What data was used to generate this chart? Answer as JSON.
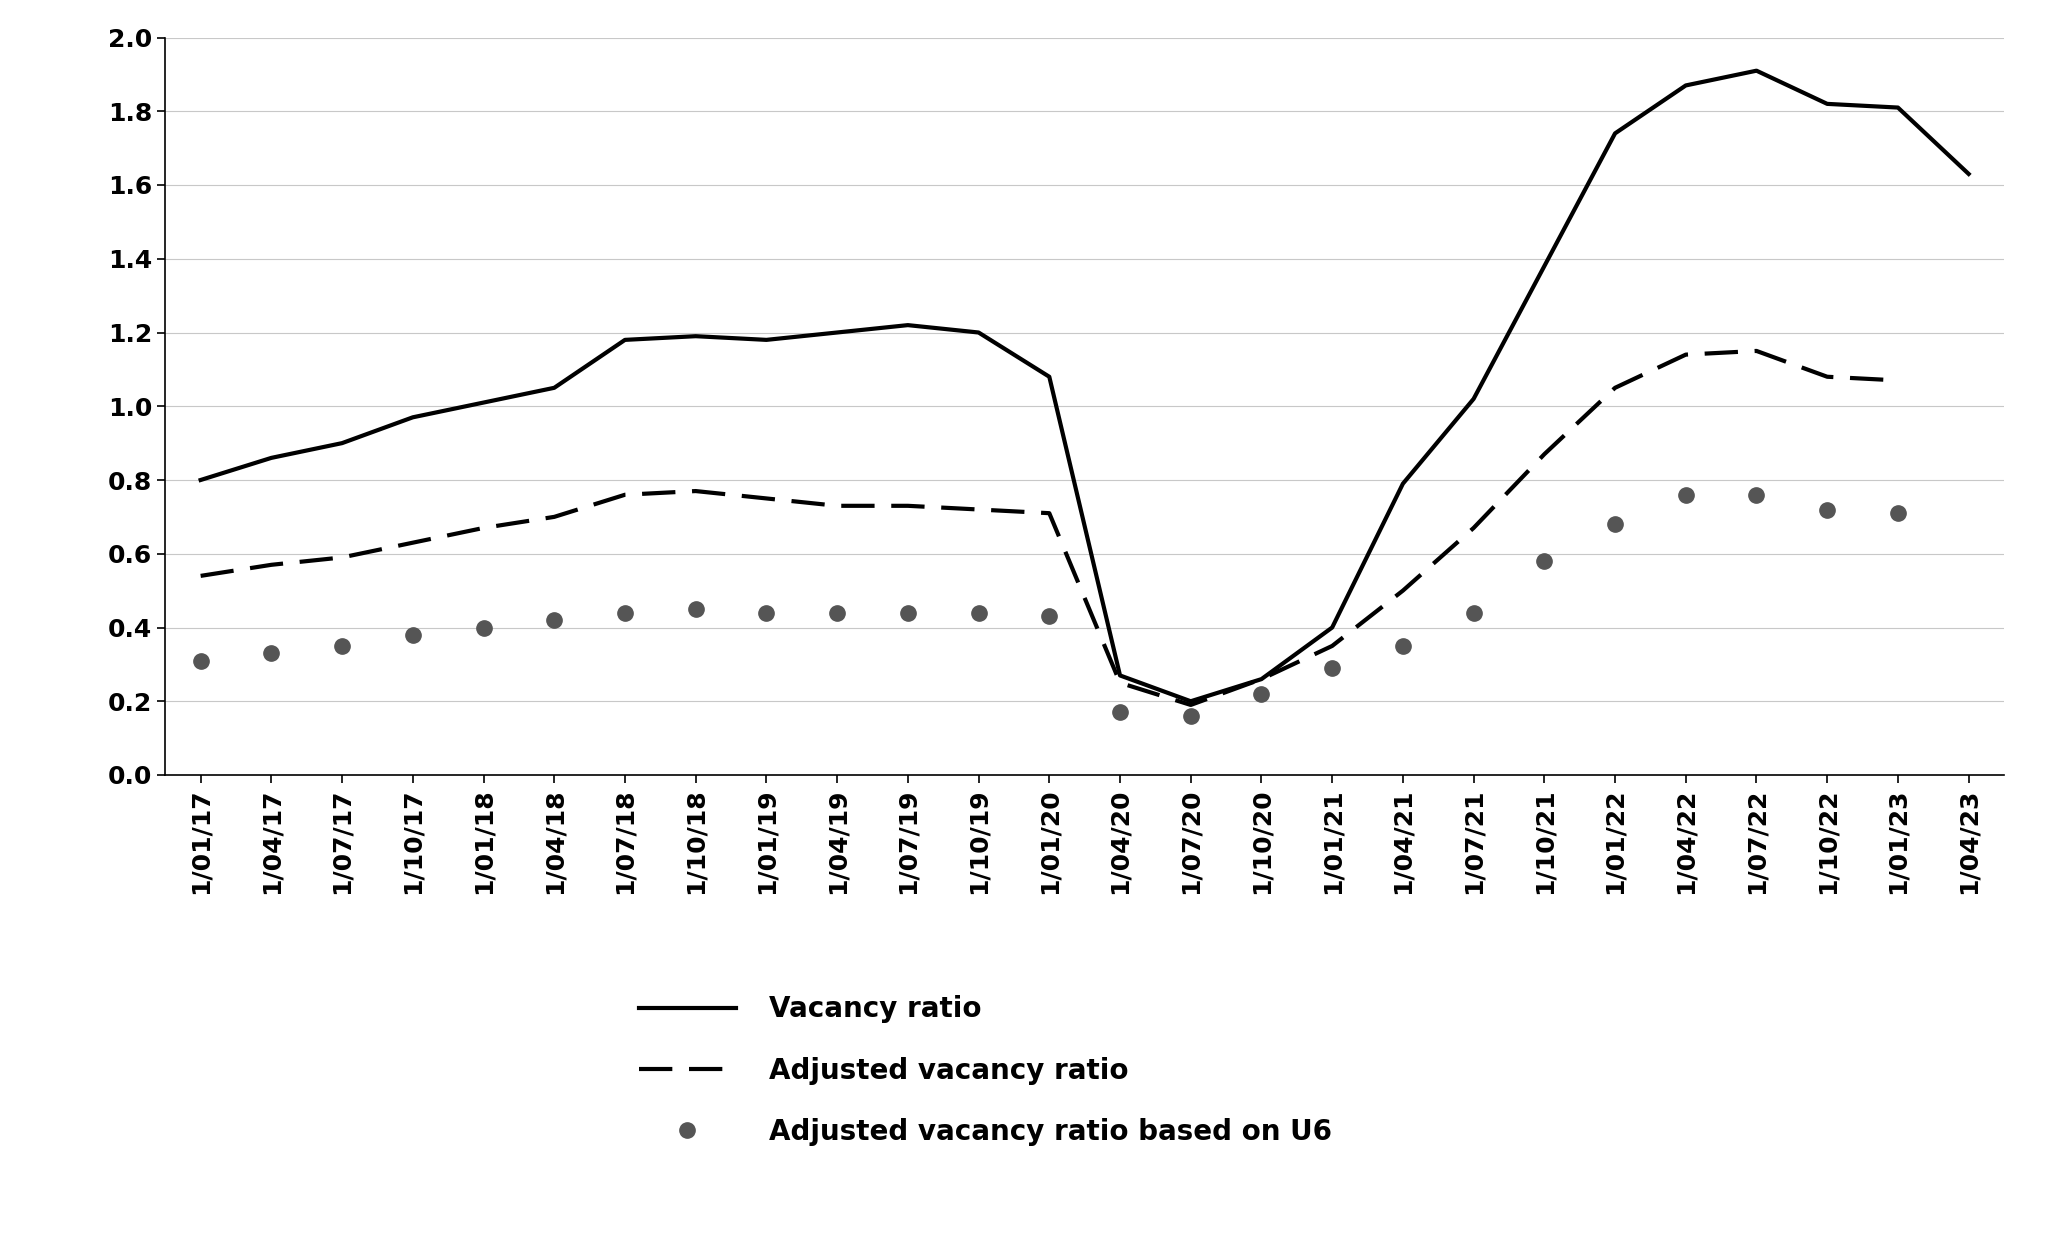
{
  "x_labels": [
    "1/01/17",
    "1/04/17",
    "1/07/17",
    "1/10/17",
    "1/01/18",
    "1/04/18",
    "1/07/18",
    "1/10/18",
    "1/01/19",
    "1/04/19",
    "1/07/19",
    "1/10/19",
    "1/01/20",
    "1/04/20",
    "1/07/20",
    "1/10/20",
    "1/01/21",
    "1/04/21",
    "1/07/21",
    "1/10/21",
    "1/01/22",
    "1/04/22",
    "1/07/22",
    "1/10/22",
    "1/01/23",
    "1/04/23"
  ],
  "vacancy_ratio": [
    0.8,
    0.86,
    0.9,
    0.97,
    1.01,
    1.05,
    1.18,
    1.19,
    1.18,
    1.2,
    1.22,
    1.2,
    1.08,
    0.27,
    0.2,
    0.26,
    0.4,
    0.79,
    1.02,
    1.38,
    1.74,
    1.87,
    1.91,
    1.82,
    1.81,
    1.63
  ],
  "adjusted_vacancy_ratio": [
    0.54,
    0.57,
    0.59,
    0.63,
    0.67,
    0.7,
    0.76,
    0.77,
    0.75,
    0.73,
    0.73,
    0.72,
    0.71,
    0.25,
    0.19,
    0.26,
    0.35,
    0.5,
    0.67,
    0.87,
    1.05,
    1.14,
    1.15,
    1.08,
    1.07,
    null
  ],
  "adjusted_vacancy_ratio_u6": [
    0.31,
    0.33,
    0.35,
    0.38,
    0.4,
    0.42,
    0.44,
    0.45,
    0.44,
    0.44,
    0.44,
    0.44,
    0.43,
    0.17,
    0.16,
    0.22,
    0.29,
    0.35,
    0.44,
    0.58,
    0.68,
    0.76,
    0.76,
    0.72,
    0.71,
    null
  ],
  "ylim": [
    0.0,
    2.0
  ],
  "yticks": [
    0.0,
    0.2,
    0.4,
    0.6,
    0.8,
    1.0,
    1.2,
    1.4,
    1.6,
    1.8,
    2.0
  ],
  "line_color": "#000000",
  "background_color": "#ffffff",
  "grid_color": "#c8c8c8",
  "legend_labels": [
    "Vacancy ratio",
    "Adjusted vacancy ratio",
    "Adjusted vacancy ratio based on U6"
  ],
  "tick_fontsize": 18,
  "legend_fontsize": 20
}
